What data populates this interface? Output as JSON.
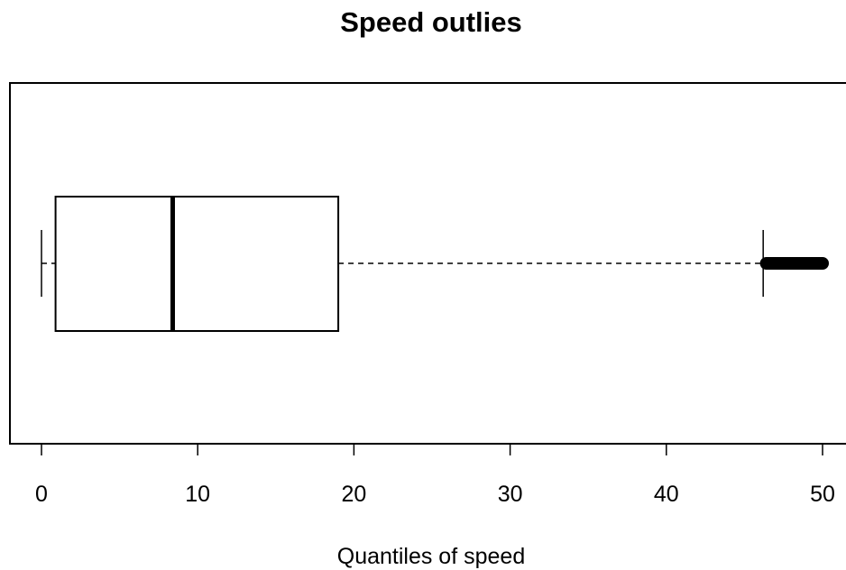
{
  "chart_data": {
    "type": "boxplot",
    "orientation": "horizontal",
    "title": "Speed outlies",
    "xlabel": "Quantiles of speed",
    "ylabel": "",
    "xlim": [
      -2,
      51.5
    ],
    "x_ticks": [
      0,
      10,
      20,
      30,
      40,
      50
    ],
    "x_tick_labels": [
      "0",
      "10",
      "20",
      "30",
      "40",
      "50"
    ],
    "grid": false,
    "legend": "none",
    "box": {
      "min": 0,
      "q1": 0.9,
      "median": 8.4,
      "q3": 19.0,
      "whisker_high": 46.2,
      "outliers_range": [
        46.4,
        50.0
      ]
    },
    "colors": {
      "line": "#000000",
      "background": "#ffffff"
    }
  }
}
